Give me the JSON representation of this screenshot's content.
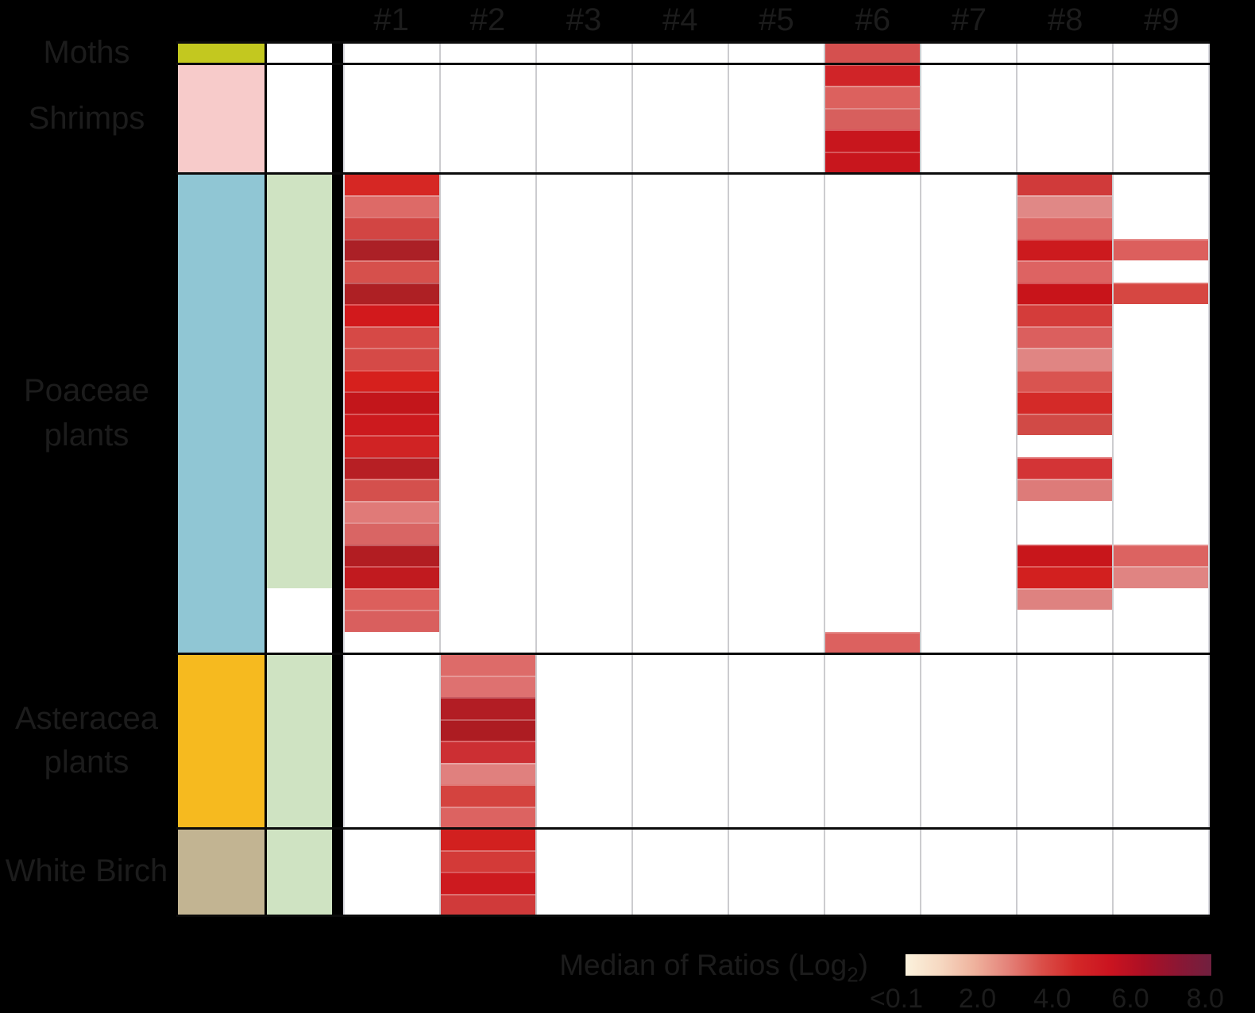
{
  "colors": {
    "background": "#000000",
    "text": "#1c1c1c",
    "cell_background": "#ffffff",
    "grid_line": "#cccccf",
    "group_separator": "#0b0b0b",
    "annotation_green": "#cfe3c2",
    "annotation_white": "#ffffff"
  },
  "legend": {
    "title_pre": "Median of Ratios (Log",
    "title_sub": "2",
    "title_post": ")",
    "ticks": [
      "<0.1",
      "2.0",
      "4.0",
      "6.0",
      "8.0"
    ],
    "tick_positions_pct": [
      -3,
      23.5,
      48,
      73.5,
      98
    ],
    "gradient_stops": [
      "#fbf2dd",
      "#f6d9c2",
      "#efb39e",
      "#e4837a",
      "#da4f49",
      "#d32828",
      "#cb1420",
      "#ad0f24",
      "#8c1633",
      "#70203f"
    ]
  },
  "chart_data": {
    "type": "heatmap",
    "title": "Median of Ratios (Log2)",
    "columns": [
      "#1",
      "#2",
      "#3",
      "#4",
      "#5",
      "#6",
      "#7",
      "#8",
      "#9"
    ],
    "legend_range": [
      "<0.1",
      "8.0"
    ],
    "cell_format": "[row_in_group, column_number, color_hex, value_log2_estimate]",
    "row_groups": [
      {
        "name": "Moths",
        "label_lines": [
          "Moths"
        ],
        "n_rows": 1,
        "taxa_color": "#c3c81f",
        "a2_green_rows": 0,
        "cells": [
          [
            1,
            6,
            "#d5504f",
            4.2
          ]
        ]
      },
      {
        "name": "Shrimps",
        "label_lines": [
          "Shrimps"
        ],
        "n_rows": 5,
        "taxa_color": "#f7cbca",
        "a2_green_rows": 0,
        "cells": [
          [
            1,
            6,
            "#d02428",
            5.5
          ],
          [
            2,
            6,
            "#dc615e",
            3.8
          ],
          [
            3,
            6,
            "#d75f5d",
            3.9
          ],
          [
            4,
            6,
            "#c8161d",
            6.0
          ],
          [
            5,
            6,
            "#c8161d",
            6.0
          ]
        ]
      },
      {
        "name": "Poaceae plants",
        "label_lines": [
          "Poaceae",
          "plants"
        ],
        "n_rows": 22,
        "taxa_color": "#90c6d4",
        "a2_green_rows": 19,
        "cells": [
          [
            1,
            1,
            "#d62724",
            5.5
          ],
          [
            1,
            8,
            "#d03a3a",
            4.6
          ],
          [
            2,
            1,
            "#dd6a67",
            3.5
          ],
          [
            2,
            8,
            "#e08886",
            3.0
          ],
          [
            3,
            1,
            "#d24543",
            4.4
          ],
          [
            3,
            8,
            "#dd6765",
            3.6
          ],
          [
            4,
            1,
            "#ab2026",
            6.8
          ],
          [
            4,
            8,
            "#cc1a1e",
            5.7
          ],
          [
            4,
            9,
            "#dc5f5d",
            3.8
          ],
          [
            5,
            1,
            "#d6504c",
            4.1
          ],
          [
            5,
            8,
            "#dd6362",
            3.7
          ],
          [
            6,
            1,
            "#ae2024",
            6.7
          ],
          [
            6,
            8,
            "#c8141a",
            6.0
          ],
          [
            6,
            9,
            "#d64742",
            4.3
          ],
          [
            7,
            1,
            "#d2191c",
            5.6
          ],
          [
            7,
            8,
            "#d43c3a",
            4.5
          ],
          [
            8,
            1,
            "#d64946",
            4.2
          ],
          [
            8,
            8,
            "#db5f5e",
            3.8
          ],
          [
            9,
            1,
            "#d54a47",
            4.2
          ],
          [
            9,
            8,
            "#e08583",
            3.1
          ],
          [
            10,
            1,
            "#d6201d",
            5.5
          ],
          [
            10,
            8,
            "#d95450",
            4.0
          ],
          [
            11,
            1,
            "#c3161b",
            6.1
          ],
          [
            11,
            8,
            "#d42a28",
            5.2
          ],
          [
            12,
            1,
            "#cc1a1e",
            5.7
          ],
          [
            12,
            8,
            "#d14a46",
            4.3
          ],
          [
            13,
            1,
            "#d02324",
            5.4
          ],
          [
            14,
            1,
            "#b71f24",
            6.5
          ],
          [
            14,
            8,
            "#d33436",
            4.7
          ],
          [
            15,
            1,
            "#d4504d",
            4.1
          ],
          [
            15,
            8,
            "#dd7b79",
            3.2
          ],
          [
            16,
            1,
            "#e07a78",
            3.2
          ],
          [
            17,
            1,
            "#d96564",
            3.7
          ],
          [
            18,
            1,
            "#b21d22",
            6.6
          ],
          [
            18,
            8,
            "#c8161b",
            6.0
          ],
          [
            18,
            9,
            "#dc6361",
            3.7
          ],
          [
            19,
            1,
            "#c11a1f",
            6.1
          ],
          [
            19,
            8,
            "#d2201f",
            5.5
          ],
          [
            19,
            9,
            "#e08482",
            3.1
          ],
          [
            20,
            1,
            "#dc5f5c",
            3.8
          ],
          [
            20,
            8,
            "#de8280",
            3.1
          ],
          [
            21,
            1,
            "#d95f5e",
            3.8
          ],
          [
            22,
            6,
            "#dc615f",
            3.8
          ]
        ]
      },
      {
        "name": "Asteracea plants",
        "label_lines": [
          "Asteracea",
          "plants"
        ],
        "n_rows": 8,
        "taxa_color": "#f6ba1f",
        "a2_green_rows": 8,
        "cells": [
          [
            1,
            2,
            "#dd6b69",
            3.5
          ],
          [
            2,
            2,
            "#de7170",
            3.4
          ],
          [
            3,
            2,
            "#b21d24",
            6.6
          ],
          [
            4,
            2,
            "#ad1c22",
            6.7
          ],
          [
            5,
            2,
            "#cc2f33",
            4.9
          ],
          [
            6,
            2,
            "#e0807e",
            3.1
          ],
          [
            7,
            2,
            "#d4433f",
            4.4
          ],
          [
            8,
            2,
            "#dc6361",
            3.7
          ]
        ]
      },
      {
        "name": "White Birch",
        "label_lines": [
          "White Birch"
        ],
        "n_rows": 4,
        "taxa_color": "#c2b492",
        "a2_green_rows": 4,
        "cells": [
          [
            1,
            2,
            "#d2201f",
            5.5
          ],
          [
            2,
            2,
            "#d33a38",
            4.6
          ],
          [
            3,
            2,
            "#cd1a1f",
            5.7
          ],
          [
            4,
            2,
            "#d03a3a",
            4.6
          ]
        ]
      }
    ]
  }
}
